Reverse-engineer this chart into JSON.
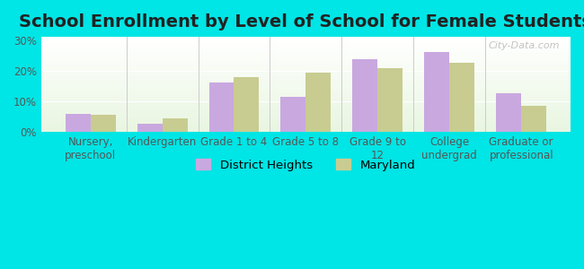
{
  "title": "School Enrollment by Level of School for Female Students",
  "categories": [
    "Nursery,\npreschool",
    "Kindergarten",
    "Grade 1 to 4",
    "Grade 5 to 8",
    "Grade 9 to\n12",
    "College\nundergrad",
    "Graduate or\nprofessional"
  ],
  "district_heights": [
    6.0,
    2.8,
    16.2,
    11.5,
    23.8,
    26.2,
    12.8
  ],
  "maryland": [
    5.8,
    4.5,
    18.0,
    19.5,
    20.8,
    22.5,
    8.5
  ],
  "bar_color_dh": "#c9a8e0",
  "bar_color_md": "#c8cc90",
  "bg_outer": "#00e5e5",
  "bg_inner_top": "#e8f5e0",
  "yticks": [
    0,
    10,
    20,
    30
  ],
  "ylim": [
    0,
    31
  ],
  "legend_labels": [
    "District Heights",
    "Maryland"
  ],
  "title_fontsize": 14,
  "tick_fontsize": 8.5,
  "legend_fontsize": 9.5
}
